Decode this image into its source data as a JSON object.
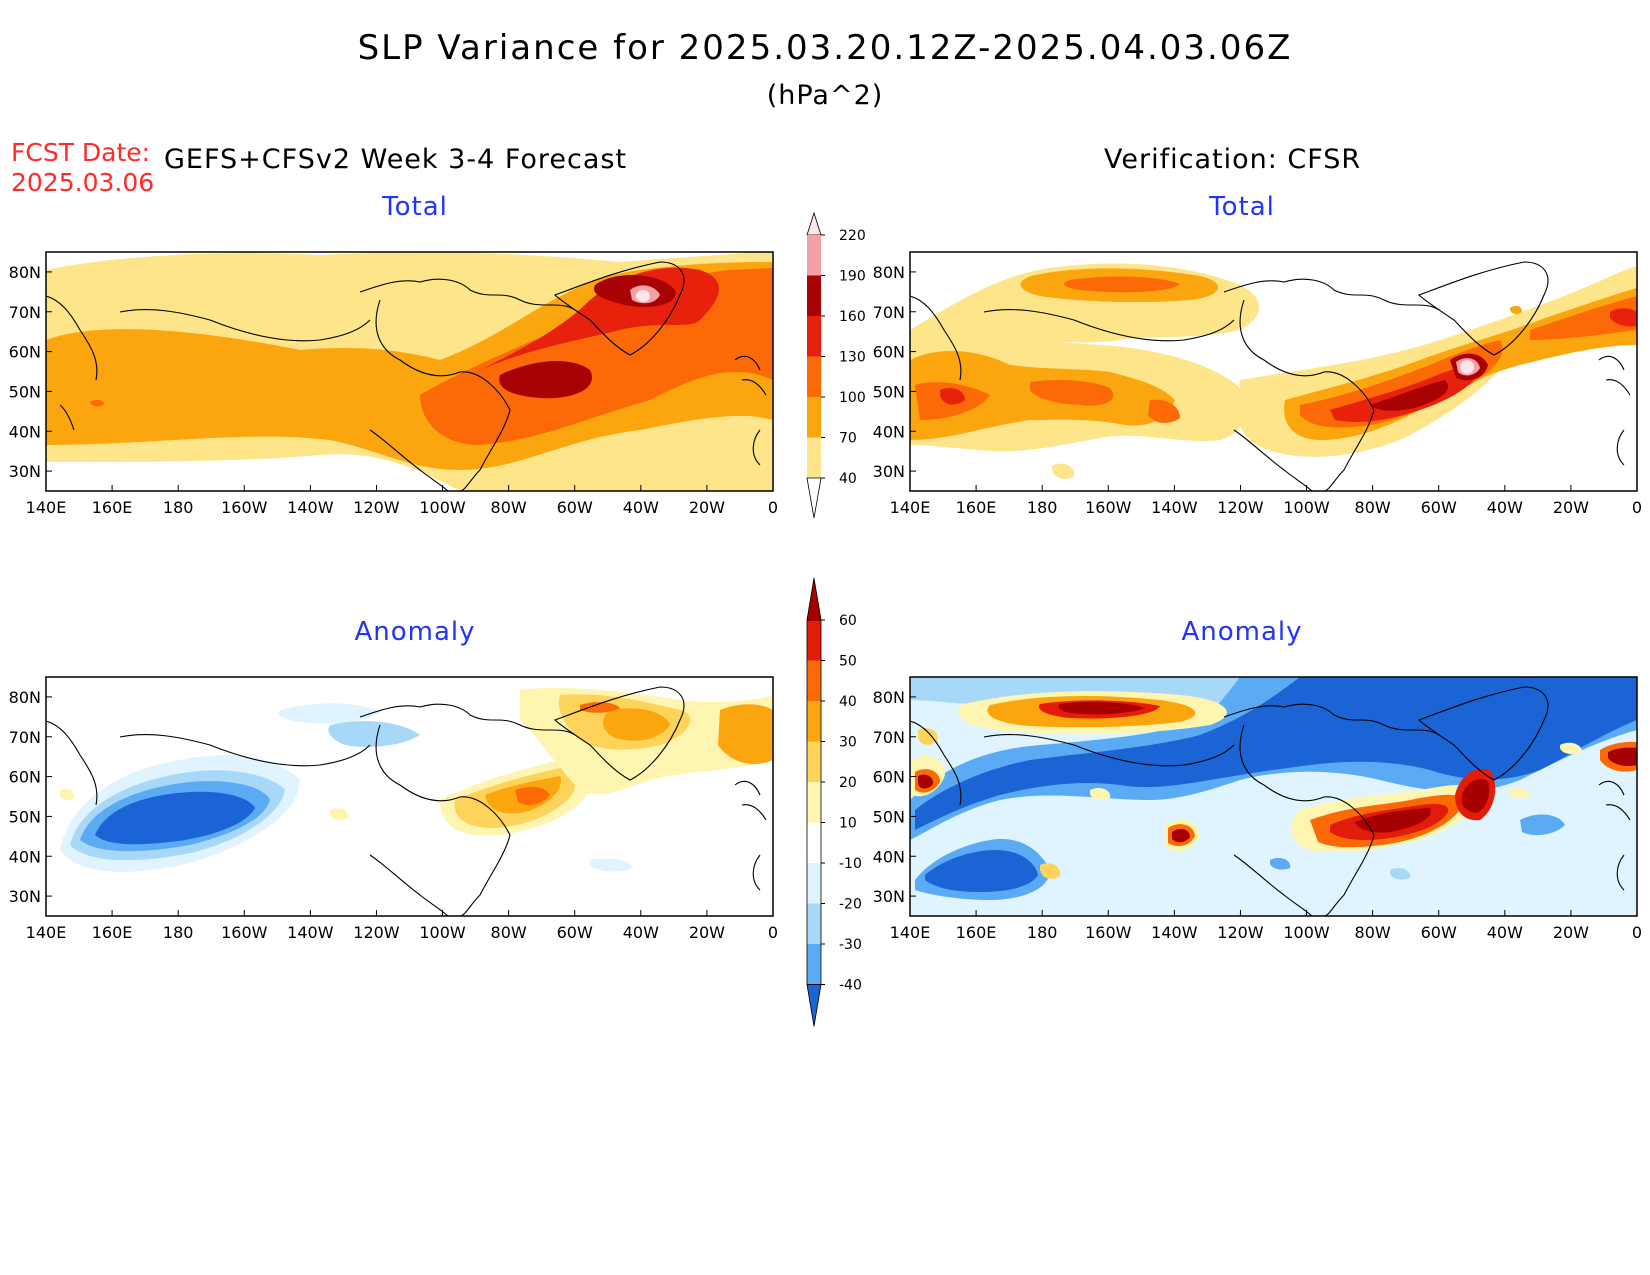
{
  "header": {
    "title": "SLP Variance for 2025.03.20.12Z-2025.04.03.06Z",
    "units": "(hPa^2)",
    "fcst_label": "FCST Date:",
    "fcst_date": "2025.03.06",
    "forecast_header": "GEFS+CFSv2 Week 3-4 Forecast",
    "verification_header": "Verification: CFSR"
  },
  "panels": {
    "forecast_total": {
      "title": "Total"
    },
    "verification_total": {
      "title": "Total"
    },
    "forecast_anomaly": {
      "title": "Anomaly"
    },
    "verification_anomaly": {
      "title": "Anomaly"
    }
  },
  "map_axes": {
    "lon_labels": [
      "140E",
      "160E",
      "180",
      "160W",
      "140W",
      "120W",
      "100W",
      "80W",
      "60W",
      "40W",
      "20W",
      "0"
    ],
    "lat_labels": [
      "80N",
      "70N",
      "60N",
      "50N",
      "40N",
      "30N"
    ],
    "lon_range": [
      140,
      360
    ],
    "lat_range": [
      25,
      85
    ]
  },
  "total_colorbar": {
    "ticks": [
      "220",
      "190",
      "160",
      "130",
      "100",
      "70",
      "40"
    ],
    "colors": {
      "40-70": "#fee58a",
      "70-100": "#fba50f",
      "100-130": "#fb6a07",
      "130-160": "#e8210d",
      "160-190": "#a90202",
      "190-220": "#f4a0a6",
      "220+": "#fde4ea"
    }
  },
  "anomaly_colorbar": {
    "ticks": [
      "60",
      "50",
      "40",
      "30",
      "20",
      "10",
      "-10",
      "-20",
      "-30",
      "-40"
    ],
    "colors": {
      "60+": "#a80000",
      "50-60": "#e31c0a",
      "40-50": "#fb6a07",
      "30-40": "#fba50f",
      "20-30": "#fdd35a",
      "10-20": "#fef6b0",
      "-10-10": "#ffffff",
      "-20--10": "#dff4ff",
      "-30--20": "#a8d8f8",
      "-40--30": "#5aaaf4",
      "<-40": "#1a64d6"
    }
  }
}
